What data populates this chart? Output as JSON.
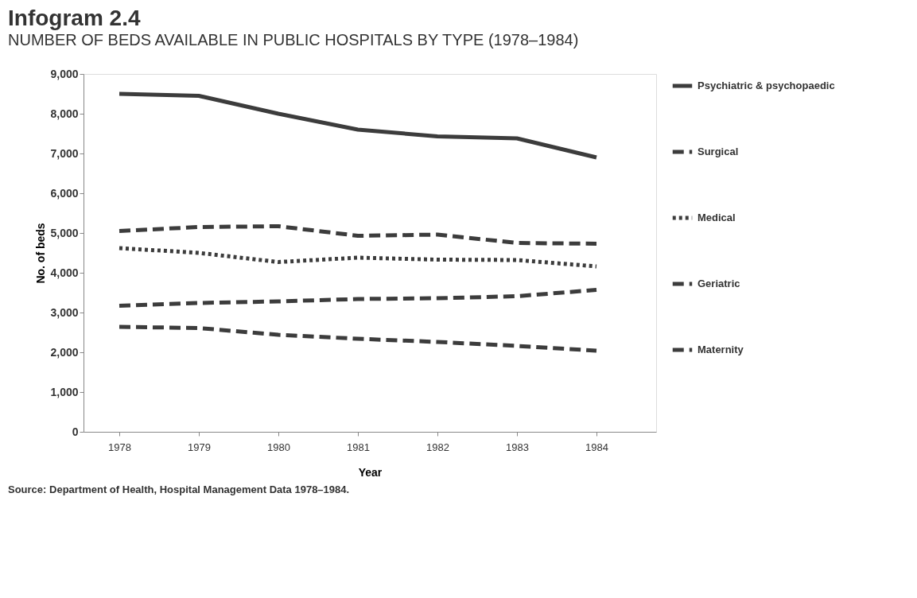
{
  "chart_data": {
    "type": "line",
    "title": "Infogram 2.4",
    "subtitle": "NUMBER OF BEDS AVAILABLE IN PUBLIC HOSPITALS BY TYPE (1978–1984)",
    "xlabel": "Year",
    "ylabel": "No. of beds",
    "x": [
      1978,
      1979,
      1980,
      1981,
      1982,
      1983,
      1984
    ],
    "series": [
      {
        "name": "Psychiatric & psychopaedic",
        "color": "#3c3c3c",
        "line_style": "solid",
        "values": [
          8500,
          8450,
          8000,
          7600,
          7430,
          7380,
          6900
        ]
      },
      {
        "name": "Surgical",
        "color": "#3c3c3c",
        "line_style": "dashed",
        "values": [
          5050,
          5150,
          5170,
          4930,
          4960,
          4750,
          4730
        ]
      },
      {
        "name": "Medical",
        "color": "#3c3c3c",
        "line_style": "dotted",
        "values": [
          4620,
          4500,
          4270,
          4380,
          4330,
          4320,
          4160
        ]
      },
      {
        "name": "Geriatric",
        "color": "#3c3c3c",
        "line_style": "dashed",
        "values": [
          3170,
          3240,
          3280,
          3340,
          3360,
          3410,
          3570
        ]
      },
      {
        "name": "Maternity",
        "color": "#3c3c3c",
        "line_style": "dashed",
        "values": [
          2640,
          2610,
          2440,
          2340,
          2260,
          2160,
          2040
        ]
      }
    ],
    "xlim": [
      1977.55,
      1984.75
    ],
    "xticks": [
      1978,
      1979,
      1980,
      1981,
      1982,
      1983,
      1984
    ],
    "ylim": [
      0,
      9000
    ],
    "yticks": [
      0,
      {
        "value": 1000,
        "label": "1,000"
      },
      {
        "value": 2000,
        "label": "2,000"
      },
      {
        "value": 3000,
        "label": "3,000"
      },
      {
        "value": 4000,
        "label": "4,000"
      },
      {
        "value": 5000,
        "label": "5,000"
      },
      {
        "value": 6000,
        "label": "6,000"
      },
      {
        "value": 7000,
        "label": "7,000"
      },
      {
        "value": 8000,
        "label": "8,000"
      },
      {
        "value": 9000,
        "label": "9,000"
      }
    ],
    "grid": false,
    "legend": "right",
    "marker": "none",
    "annotations": [
      "Source: Department of Health, Hospital Management Data 1978–1984."
    ]
  }
}
